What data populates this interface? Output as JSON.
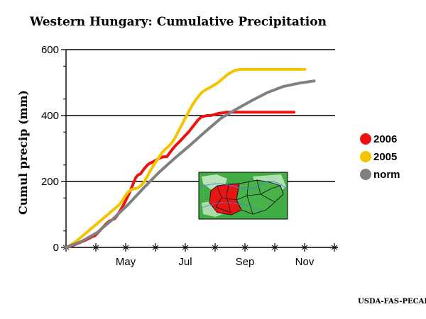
{
  "chart_data": {
    "type": "line",
    "title": "Western Hungary: Cumulative Precipitation",
    "ylabel": "Cumul precip (mm)",
    "xlabel": "",
    "ylim": [
      0,
      600
    ],
    "yticks": [
      "0",
      "200",
      "400",
      "600"
    ],
    "xticks": [
      "May",
      "Jul",
      "Sep",
      "Nov"
    ],
    "grid": true,
    "legend_position": "right",
    "credit": "USDA-FAS-PECAD",
    "inset_map": "Hungary region map with western Hungary highlighted in red",
    "series": [
      {
        "name": "2006",
        "color": "#ee1111",
        "x": [
          0,
          5,
          10,
          15,
          20,
          25,
          30,
          34,
          37,
          40,
          44,
          48,
          52,
          56,
          60,
          63,
          66,
          69,
          72,
          75,
          78,
          81,
          84,
          87,
          90,
          93,
          96,
          99,
          102,
          105,
          108,
          111,
          114,
          117,
          120,
          123,
          126,
          130,
          134,
          138,
          142,
          146,
          150,
          154,
          158,
          162,
          166,
          170,
          174,
          178,
          182,
          186,
          190,
          194,
          198,
          202,
          206,
          210,
          214,
          218,
          222,
          226,
          230,
          234,
          238,
          242,
          246,
          250,
          254,
          258,
          262,
          266,
          270,
          274,
          278,
          282,
          286,
          290,
          294
        ],
        "values": [
          0,
          3,
          7,
          12,
          17,
          22,
          28,
          33,
          35,
          42,
          52,
          62,
          72,
          80,
          84,
          88,
          97,
          108,
          120,
          133,
          147,
          162,
          178,
          195,
          212,
          220,
          223,
          233,
          242,
          250,
          255,
          258,
          262,
          266,
          270,
          273,
          275,
          275,
          288,
          300,
          311,
          320,
          330,
          340,
          350,
          362,
          374,
          386,
          395,
          398,
          400,
          400,
          402,
          405,
          407,
          408,
          410,
          410,
          410,
          410,
          410,
          410,
          410,
          410,
          410,
          410,
          410,
          410,
          410,
          410,
          410,
          410,
          410,
          410,
          410,
          410,
          410,
          410,
          410
        ]
      },
      {
        "name": "2005",
        "color": "#f5c400",
        "x": [
          0,
          5,
          10,
          15,
          20,
          25,
          30,
          35,
          40,
          45,
          50,
          55,
          60,
          64,
          68,
          72,
          76,
          80,
          84,
          88,
          92,
          96,
          100,
          104,
          108,
          112,
          116,
          120,
          124,
          128,
          132,
          136,
          140,
          144,
          148,
          152,
          156,
          160,
          164,
          168,
          172,
          176,
          180,
          184,
          188,
          192,
          196,
          200,
          204,
          208,
          212,
          216,
          220,
          224,
          228,
          232,
          236,
          240,
          244,
          248,
          252,
          256,
          260,
          264,
          268,
          272,
          276,
          280,
          284,
          288,
          292,
          296,
          300,
          304,
          308
        ],
        "values": [
          0,
          6,
          14,
          22,
          32,
          42,
          52,
          62,
          72,
          82,
          92,
          102,
          112,
          120,
          128,
          140,
          155,
          168,
          175,
          178,
          180,
          186,
          196,
          212,
          230,
          246,
          260,
          274,
          288,
          298,
          306,
          316,
          330,
          348,
          366,
          384,
          402,
          420,
          436,
          450,
          462,
          472,
          478,
          483,
          488,
          494,
          500,
          508,
          516,
          524,
          530,
          535,
          538,
          540,
          540,
          540,
          540,
          540,
          540,
          540,
          540,
          540,
          540,
          540,
          540,
          540,
          540,
          540,
          540,
          540,
          540,
          540,
          540,
          540,
          540
        ]
      },
      {
        "name": "norm",
        "color": "#808080",
        "x": [
          0,
          20,
          40,
          60,
          80,
          100,
          120,
          140,
          160,
          180,
          200,
          220,
          240,
          260,
          280,
          300,
          320
        ],
        "values": [
          0,
          18,
          45,
          85,
          130,
          180,
          228,
          270,
          310,
          352,
          392,
          420,
          446,
          470,
          488,
          498,
          505
        ]
      }
    ]
  }
}
